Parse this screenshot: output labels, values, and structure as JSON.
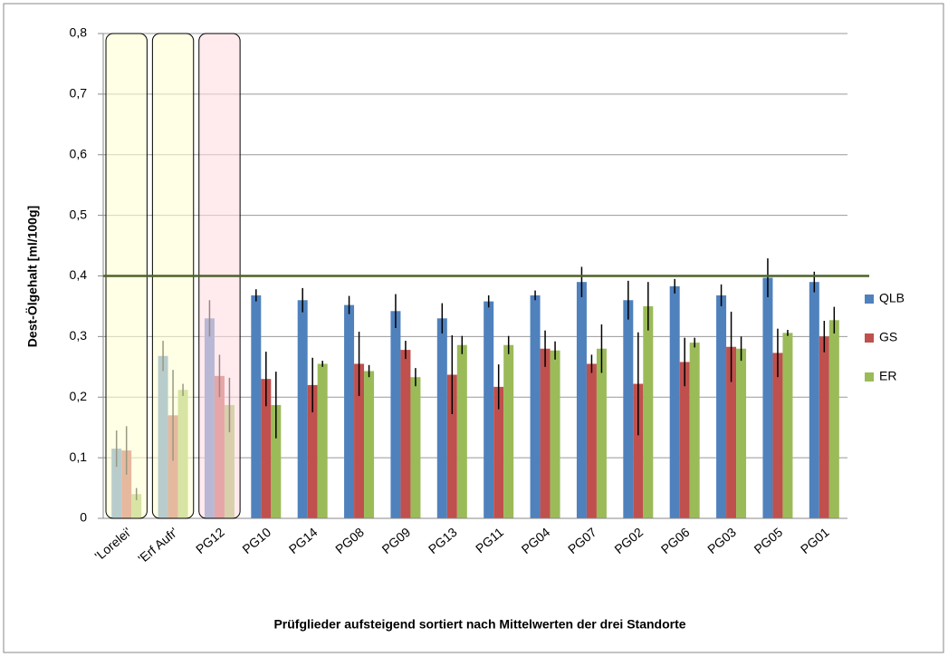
{
  "chart_data": {
    "type": "bar",
    "y_label": "Dest-Ölgehalt [ml/100g]",
    "x_label": "Prüfglieder aufsteigend  sortiert nach Mittelwerten der drei Standorte",
    "categories": [
      "'Lorelei'",
      "'Erf Aufr'",
      "PG12",
      "PG10",
      "PG14",
      "PG08",
      "PG09",
      "PG13",
      "PG11",
      "PG04",
      "PG07",
      "PG02",
      "PG06",
      "PG03",
      "PG05",
      "PG01"
    ],
    "series": [
      {
        "name": "QLB",
        "color": "#4f81bd",
        "values": [
          0.115,
          0.268,
          0.33,
          0.368,
          0.36,
          0.352,
          0.342,
          0.33,
          0.358,
          0.368,
          0.39,
          0.36,
          0.383,
          0.368,
          0.397,
          0.39
        ],
        "errors": [
          0.03,
          0.025,
          0.03,
          0.01,
          0.02,
          0.015,
          0.028,
          0.025,
          0.01,
          0.008,
          0.025,
          0.032,
          0.012,
          0.018,
          0.032,
          0.017
        ]
      },
      {
        "name": "GS",
        "color": "#c0504d",
        "values": [
          0.112,
          0.17,
          0.235,
          0.23,
          0.22,
          0.255,
          0.278,
          0.237,
          0.217,
          0.28,
          0.255,
          0.222,
          0.258,
          0.283,
          0.273,
          0.3
        ],
        "errors": [
          0.04,
          0.075,
          0.035,
          0.045,
          0.045,
          0.053,
          0.015,
          0.065,
          0.037,
          0.03,
          0.015,
          0.085,
          0.04,
          0.058,
          0.04,
          0.026
        ]
      },
      {
        "name": "ER",
        "color": "#9bbb59",
        "values": [
          0.04,
          0.212,
          0.187,
          0.187,
          0.255,
          0.243,
          0.233,
          0.286,
          0.286,
          0.277,
          0.28,
          0.35,
          0.29,
          0.28,
          0.306,
          0.327
        ],
        "errors": [
          0.01,
          0.01,
          0.045,
          0.055,
          0.005,
          0.01,
          0.015,
          0.015,
          0.015,
          0.015,
          0.04,
          0.04,
          0.008,
          0.02,
          0.005,
          0.022
        ]
      }
    ],
    "ylim": [
      0,
      0.8
    ],
    "yticks": [
      0,
      {
        "value": 0.1,
        "label": "0,1"
      },
      {
        "value": 0.2,
        "label": "0,2"
      },
      {
        "value": 0.3,
        "label": "0,3"
      },
      {
        "value": 0.4,
        "label": "0,4"
      },
      {
        "value": 0.5,
        "label": "0,5"
      },
      {
        "value": 0.6,
        "label": "0,6"
      },
      {
        "value": 0.7,
        "label": "0,7"
      },
      {
        "value": 0.8,
        "label": "0,8"
      }
    ],
    "grid": true,
    "legend": "right",
    "reference_line": {
      "value": 0.4,
      "color": "#4f6228"
    },
    "highlights": [
      {
        "category": "'Lorelei'",
        "color": "#ffffd6"
      },
      {
        "category": "'Erf Aufr'",
        "color": "#ffffd6"
      },
      {
        "category": "PG12",
        "color": "#ffdde2"
      }
    ]
  }
}
